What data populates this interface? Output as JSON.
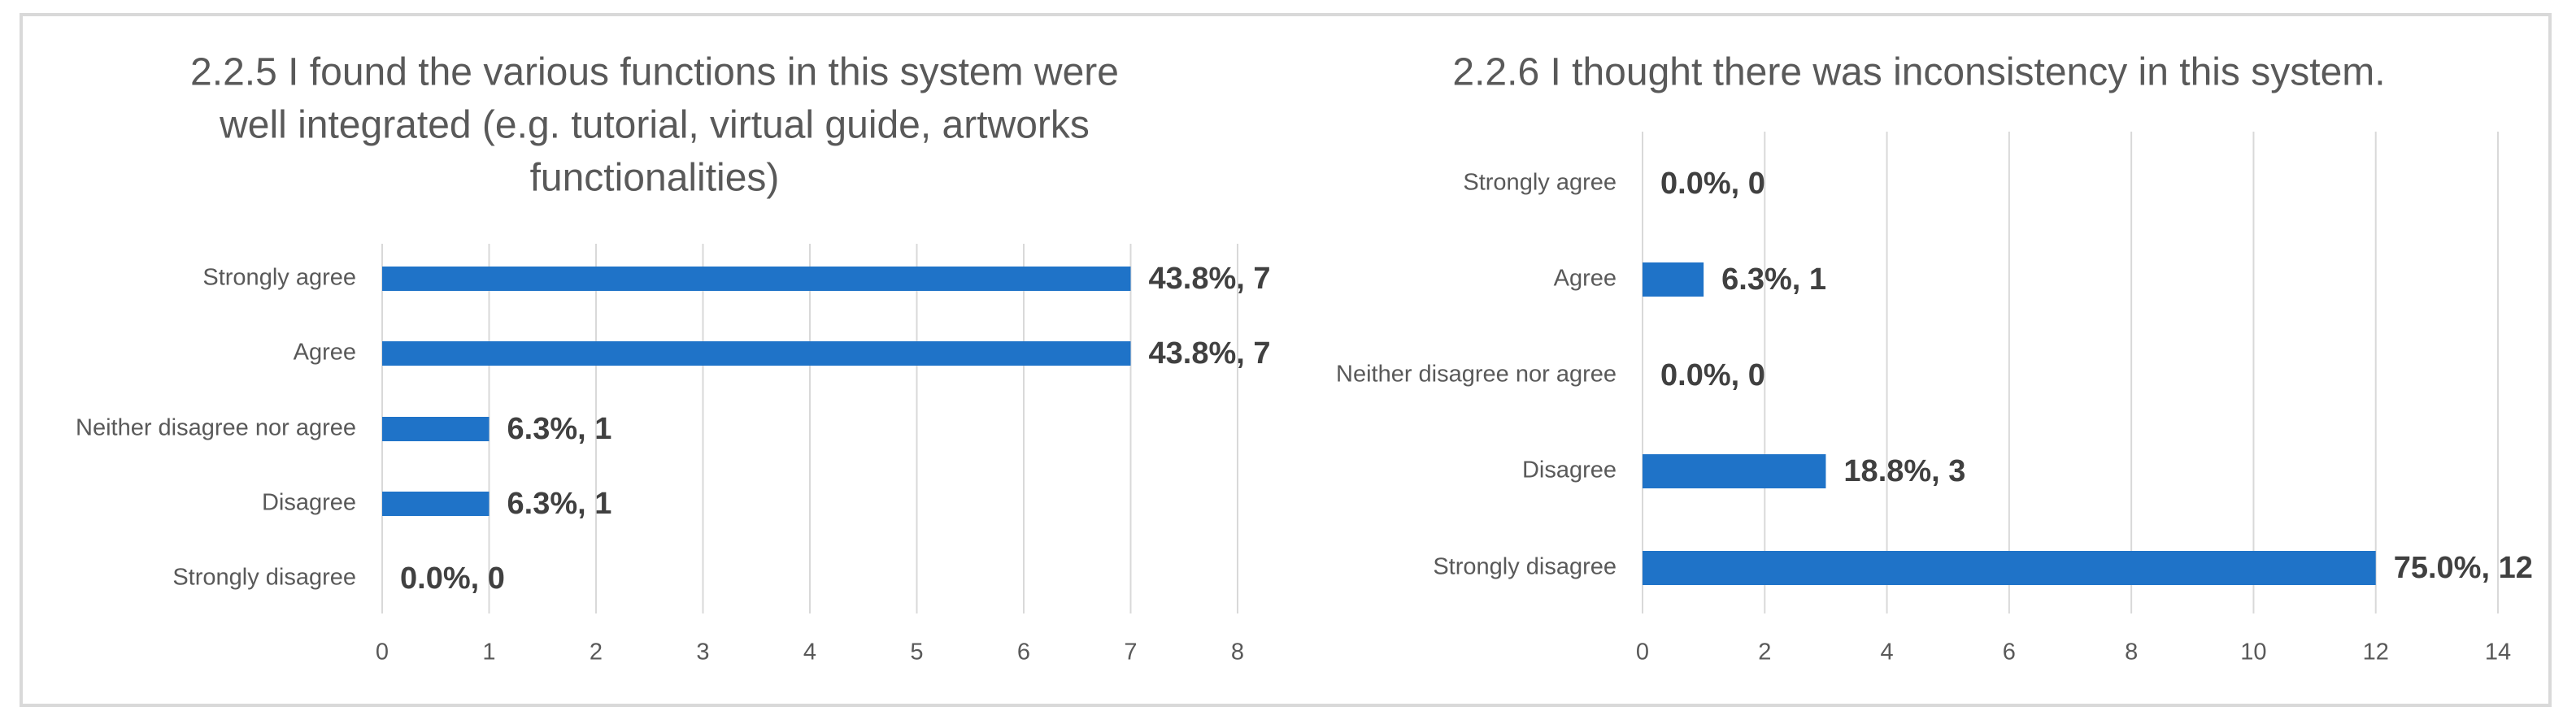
{
  "chart_data": [
    {
      "type": "bar",
      "orientation": "horizontal",
      "title_lines": [
        "2.2.5 I found the various functions in this system were",
        "well integrated (e.g. tutorial, virtual guide, artworks",
        "functionalities)"
      ],
      "categories": [
        "Strongly agree",
        "Agree",
        "Neither disagree nor agree",
        "Disagree",
        "Strongly disagree"
      ],
      "values": [
        7,
        7,
        1,
        1,
        0
      ],
      "data_labels": [
        "43.8%, 7",
        "43.8%, 7",
        "6.3%, 1",
        "6.3%, 1",
        "0.0%, 0"
      ],
      "xlim": [
        0,
        8
      ],
      "xticks": [
        "0",
        "1",
        "2",
        "3",
        "4",
        "5",
        "6",
        "7",
        "8"
      ],
      "grid": true,
      "bar_color": "#1f73c8"
    },
    {
      "type": "bar",
      "orientation": "horizontal",
      "title_lines": [
        "2.2.6 I thought there was inconsistency in this system."
      ],
      "categories": [
        "Strongly agree",
        "Agree",
        "Neither disagree nor agree",
        "Disagree",
        "Strongly disagree"
      ],
      "values": [
        0,
        1,
        0,
        3,
        12
      ],
      "data_labels": [
        "0.0%, 0",
        "6.3%, 1",
        "0.0%, 0",
        "18.8%, 3",
        "75.0%, 12"
      ],
      "xlim": [
        0,
        14
      ],
      "xticks": [
        "0",
        "2",
        "4",
        "6",
        "8",
        "10",
        "12",
        "14"
      ],
      "grid": true,
      "bar_color": "#1f73c8"
    }
  ]
}
